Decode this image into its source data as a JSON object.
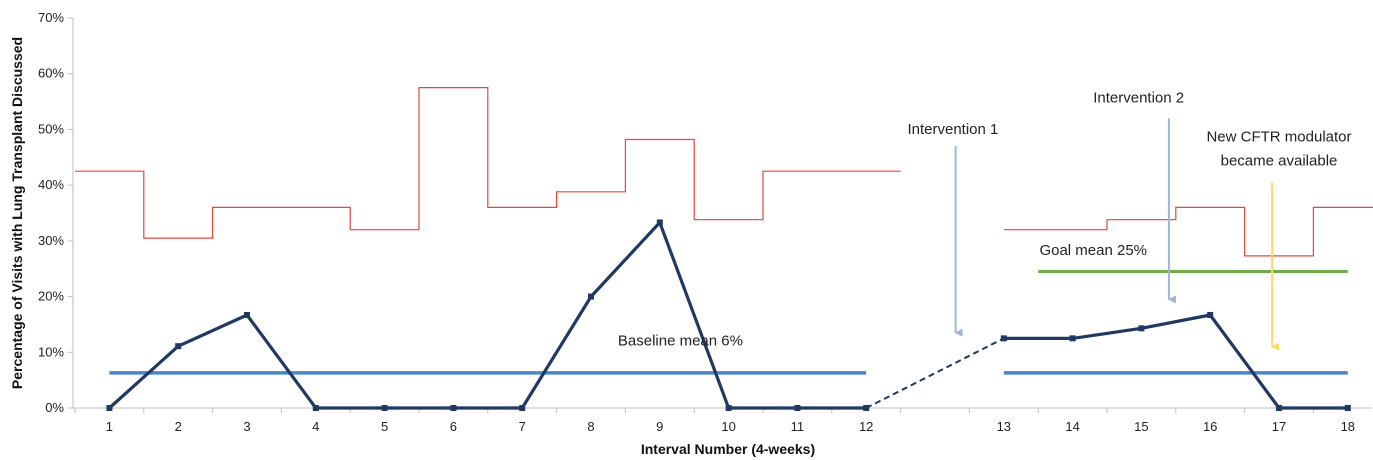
{
  "chart_data": {
    "type": "line",
    "xlabel": "Interval Number (4-weeks)",
    "ylabel": "Percentage of Visits with Lung Transplant Discussed",
    "ylim": [
      0,
      70
    ],
    "yticks": [
      "0%",
      "10%",
      "20%",
      "30%",
      "40%",
      "50%",
      "60%",
      "70%"
    ],
    "x_tick_labels": [
      "1",
      "2",
      "3",
      "4",
      "5",
      "6",
      "7",
      "8",
      "9",
      "10",
      "11",
      "12",
      "",
      "13",
      "14",
      "15",
      "16",
      "17",
      "18"
    ],
    "grid": false,
    "colors": {
      "percentage_line": "#1f3864",
      "upper_limit": "#e8463e",
      "mean_line": "#4a86c5",
      "goal_line": "#70ad47",
      "intervention_arrow": "#9db5dc",
      "cftr_arrow": "#ffd966"
    },
    "series": [
      {
        "role": "percentage",
        "x": [
          1,
          2,
          3,
          4,
          5,
          6,
          7,
          8,
          9,
          10,
          11,
          12,
          14,
          15,
          16,
          17,
          18,
          19
        ],
        "values": [
          0,
          11.1,
          16.7,
          0,
          0,
          0,
          0,
          20,
          33.3,
          0,
          0,
          0,
          12.5,
          12.5,
          14.3,
          16.7,
          0,
          0
        ],
        "bridge": {
          "from": [
            12,
            0
          ],
          "to": [
            14,
            12.5
          ],
          "style": "dashed"
        }
      },
      {
        "role": "upper_control_limit",
        "segments": [
          [
            [
              0.5,
              42.5
            ],
            [
              1.5,
              42.5
            ],
            [
              1.5,
              30.5
            ],
            [
              2.5,
              30.5
            ],
            [
              2.5,
              36
            ],
            [
              4.5,
              36
            ],
            [
              4.5,
              32
            ],
            [
              5.5,
              32
            ],
            [
              5.5,
              57.5
            ],
            [
              6.5,
              57.5
            ],
            [
              6.5,
              36
            ],
            [
              7.5,
              36
            ],
            [
              7.5,
              38.8
            ],
            [
              8.5,
              38.8
            ],
            [
              8.5,
              48.2
            ],
            [
              9.5,
              48.2
            ],
            [
              9.5,
              33.8
            ],
            [
              10.5,
              33.8
            ],
            [
              10.5,
              42.5
            ],
            [
              12.5,
              42.5
            ]
          ],
          [
            [
              14,
              32
            ],
            [
              15.5,
              32
            ],
            [
              15.5,
              33.8
            ],
            [
              16.5,
              33.8
            ],
            [
              16.5,
              36
            ],
            [
              17.5,
              36
            ],
            [
              17.5,
              27.3
            ],
            [
              18.5,
              27.3
            ],
            [
              18.5,
              36
            ],
            [
              19.9,
              36
            ]
          ]
        ]
      },
      {
        "role": "baseline_mean",
        "segments": [
          [
            [
              1,
              6.3
            ],
            [
              12,
              6.3
            ]
          ],
          [
            [
              14,
              6.3
            ],
            [
              19,
              6.3
            ]
          ]
        ]
      },
      {
        "role": "goal_mean",
        "segments": [
          [
            [
              14.5,
              24.5
            ],
            [
              19,
              24.5
            ]
          ]
        ]
      }
    ],
    "annotations": [
      {
        "text": "Baseline mean 6%",
        "x": 9.3,
        "y": 11.2,
        "anchor": "middle"
      },
      {
        "text": "Goal mean 25%",
        "x": 15.3,
        "y": 27.5,
        "anchor": "middle"
      },
      {
        "text": "Intervention 1",
        "x": 12.6,
        "y": 49.2,
        "anchor": "start",
        "arrow": {
          "x": 13.3,
          "from_y": 47,
          "to_y": 13.5,
          "color_key": "intervention_arrow"
        }
      },
      {
        "text": "Intervention 2",
        "x": 15.3,
        "y": 54.8,
        "anchor": "start",
        "arrow": {
          "x": 16.4,
          "from_y": 52,
          "to_y": 19.5,
          "color_key": "intervention_arrow"
        }
      },
      {
        "text": "New CFTR modulator",
        "x": 18.0,
        "y": 47.8,
        "anchor": "middle"
      },
      {
        "text": "became available",
        "x": 18.0,
        "y": 43.5,
        "anchor": "middle",
        "arrow": {
          "x": 17.9,
          "from_y": 40.5,
          "to_y": 11,
          "color_key": "cftr_arrow"
        }
      }
    ]
  }
}
